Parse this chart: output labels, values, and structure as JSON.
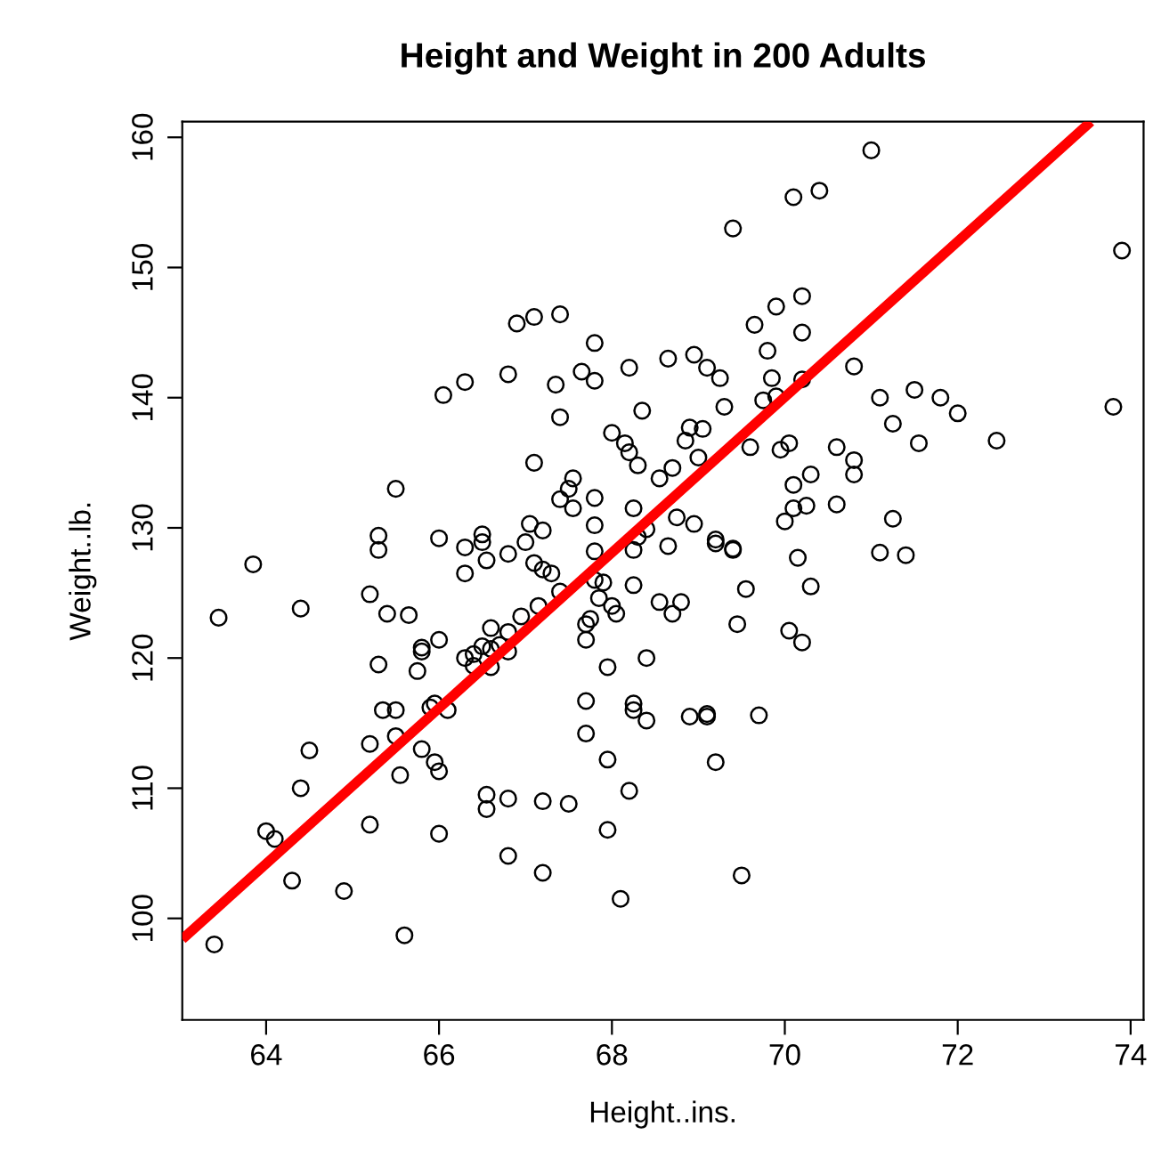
{
  "chart_data": {
    "type": "scatter",
    "title": "Height and Weight in 200 Adults",
    "xlabel": "Height..ins.",
    "ylabel": "Weight..lb.",
    "xlim": [
      63.03,
      74.15
    ],
    "ylim": [
      92.2,
      161.2
    ],
    "xticks": [
      64,
      66,
      68,
      70,
      72,
      74
    ],
    "yticks": [
      100,
      110,
      120,
      130,
      140,
      150,
      160
    ],
    "grid": false,
    "series": [
      {
        "marker": "circle",
        "color": "#000000",
        "x": [
          63.45,
          63.4,
          63.85,
          64.0,
          64.1,
          64.3,
          64.4,
          64.4,
          64.5,
          64.9,
          65.2,
          65.2,
          65.2,
          65.3,
          65.3,
          65.3,
          65.35,
          65.4,
          65.5,
          65.5,
          65.5,
          65.55,
          65.6,
          65.65,
          65.75,
          65.8,
          65.8,
          65.8,
          65.9,
          65.95,
          65.95,
          66.0,
          66.0,
          66.0,
          66.0,
          66.05,
          66.1,
          66.3,
          66.3,
          66.3,
          66.3,
          66.4,
          66.4,
          66.5,
          66.5,
          66.5,
          66.55,
          66.6,
          66.6,
          66.6,
          66.55,
          66.55,
          66.7,
          66.8,
          66.8,
          66.8,
          66.8,
          66.8,
          66.8,
          66.9,
          66.95,
          67.0,
          67.05,
          67.1,
          67.1,
          67.1,
          67.15,
          67.2,
          67.2,
          67.2,
          67.2,
          67.3,
          67.35,
          67.4,
          67.4,
          67.4,
          67.4,
          67.5,
          67.5,
          67.55,
          67.55,
          67.65,
          67.7,
          67.7,
          67.7,
          67.7,
          67.75,
          67.8,
          67.8,
          67.8,
          67.8,
          67.8,
          67.8,
          67.85,
          67.9,
          67.95,
          67.95,
          67.95,
          68.0,
          68.0,
          68.05,
          68.1,
          68.15,
          68.2,
          68.2,
          68.25,
          68.25,
          68.25,
          68.25,
          68.25,
          68.2,
          68.3,
          68.3,
          68.35,
          68.4,
          68.4,
          68.4,
          68.55,
          68.55,
          68.65,
          68.65,
          68.7,
          68.7,
          68.75,
          68.8,
          68.85,
          68.9,
          68.9,
          68.95,
          68.95,
          69.0,
          69.05,
          69.1,
          69.1,
          69.1,
          69.2,
          69.2,
          69.2,
          69.25,
          69.3,
          69.4,
          69.4,
          69.4,
          69.45,
          69.5,
          69.55,
          69.6,
          69.65,
          69.7,
          69.75,
          69.8,
          69.85,
          69.9,
          69.9,
          69.95,
          70.0,
          70.05,
          70.05,
          70.1,
          70.1,
          70.1,
          70.15,
          70.2,
          70.2,
          70.2,
          70.2,
          70.25,
          70.3,
          70.3,
          70.4,
          70.6,
          70.6,
          70.8,
          70.8,
          70.8,
          71.0,
          71.1,
          71.1,
          71.25,
          71.25,
          71.4,
          71.5,
          71.55,
          71.8,
          72.0,
          72.45,
          73.8,
          73.9
        ],
        "values": [
          123.1,
          98,
          127.2,
          106.7,
          106.1,
          102.9,
          123.8,
          110,
          112.9,
          102.1,
          124.9,
          113.4,
          107.2,
          129.4,
          119.5,
          128.3,
          116,
          123.4,
          116,
          114,
          133,
          111,
          98.7,
          123.3,
          119,
          120.8,
          120.5,
          113,
          116.2,
          116.5,
          112,
          111.3,
          106.5,
          129.2,
          121.4,
          140.2,
          116,
          141.2,
          128.5,
          126.5,
          120,
          120.3,
          119.4,
          120.9,
          129.5,
          128.9,
          127.5,
          122.3,
          120.7,
          119.3,
          109.5,
          108.4,
          121,
          141.8,
          128,
          122,
          120.5,
          109.2,
          104.8,
          145.7,
          123.2,
          128.9,
          130.3,
          146.2,
          135,
          127.3,
          124,
          126.8,
          129.8,
          109,
          103.5,
          126.5,
          141,
          146.4,
          138.5,
          125.1,
          132.2,
          133,
          108.8,
          133.8,
          131.5,
          142,
          114.2,
          121.4,
          122.6,
          116.7,
          123,
          144.2,
          141.3,
          132.3,
          130.2,
          128.2,
          126,
          124.6,
          125.8,
          112.2,
          119.3,
          106.8,
          137.3,
          124,
          123.4,
          101.5,
          136.5,
          142.3,
          135.8,
          131.5,
          128.3,
          125.6,
          116.5,
          116,
          109.8,
          134.8,
          129.3,
          139,
          120,
          115.2,
          129.9,
          124.3,
          133.8,
          128.6,
          143,
          134.6,
          123.4,
          130.8,
          124.3,
          136.7,
          137.7,
          115.5,
          143.3,
          130.3,
          135.4,
          137.6,
          142.3,
          115.7,
          115.5,
          129.1,
          128.8,
          112,
          141.5,
          139.3,
          153,
          128.4,
          128.3,
          122.6,
          103.3,
          125.3,
          136.2,
          145.6,
          115.6,
          139.8,
          143.6,
          141.5,
          140.1,
          147,
          136,
          130.5,
          136.5,
          122.1,
          155.4,
          133.3,
          131.5,
          127.7,
          147.8,
          145,
          141.4,
          121.2,
          131.7,
          134.1,
          125.5,
          155.9,
          136.2,
          131.8,
          142.4,
          134.1,
          135.2,
          159,
          128.1,
          140,
          138,
          130.7,
          127.9,
          140.6,
          136.5,
          140,
          138.8,
          136.7,
          139.3,
          151.3
        ]
      },
      {
        "type": "line",
        "color": "#ff0000",
        "x": [
          63.03,
          73.54
        ],
        "values": [
          98.4,
          161.2
        ]
      }
    ]
  }
}
